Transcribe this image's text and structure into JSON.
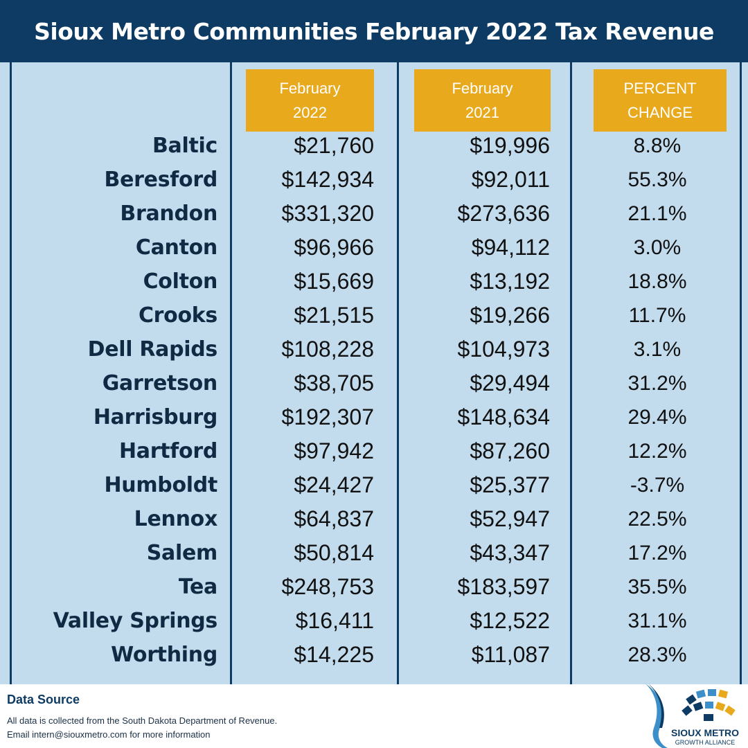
{
  "title": "Sioux Metro Communities February 2022 Tax Revenue",
  "headers": {
    "col1_line1": "February",
    "col1_line2": "2022",
    "col2_line1": "February",
    "col2_line2": "2021",
    "col3_line1": "PERCENT",
    "col3_line2": "CHANGE"
  },
  "chart_data": {
    "type": "table",
    "title": "Sioux Metro Communities February 2022 Tax Revenue",
    "columns": [
      "February 2022",
      "February 2021",
      "PERCENT CHANGE"
    ],
    "rows": [
      {
        "name": "Baltic",
        "feb2022": "$21,760",
        "feb2021": "$19,996",
        "change": "8.8%"
      },
      {
        "name": "Beresford",
        "feb2022": "$142,934",
        "feb2021": "$92,011",
        "change": "55.3%"
      },
      {
        "name": "Brandon",
        "feb2022": "$331,320",
        "feb2021": "$273,636",
        "change": "21.1%"
      },
      {
        "name": "Canton",
        "feb2022": "$96,966",
        "feb2021": "$94,112",
        "change": "3.0%"
      },
      {
        "name": "Colton",
        "feb2022": "$15,669",
        "feb2021": "$13,192",
        "change": "18.8%"
      },
      {
        "name": "Crooks",
        "feb2022": "$21,515",
        "feb2021": "$19,266",
        "change": "11.7%"
      },
      {
        "name": "Dell Rapids",
        "feb2022": "$108,228",
        "feb2021": "$104,973",
        "change": "3.1%"
      },
      {
        "name": "Garretson",
        "feb2022": "$38,705",
        "feb2021": "$29,494",
        "change": "31.2%"
      },
      {
        "name": "Harrisburg",
        "feb2022": "$192,307",
        "feb2021": "$148,634",
        "change": "29.4%"
      },
      {
        "name": "Hartford",
        "feb2022": "$97,942",
        "feb2021": "$87,260",
        "change": "12.2%"
      },
      {
        "name": "Humboldt",
        "feb2022": "$24,427",
        "feb2021": "$25,377",
        "change": "-3.7%"
      },
      {
        "name": "Lennox",
        "feb2022": "$64,837",
        "feb2021": "$52,947",
        "change": "22.5%"
      },
      {
        "name": "Salem",
        "feb2022": "$50,814",
        "feb2021": "$43,347",
        "change": "17.2%"
      },
      {
        "name": "Tea",
        "feb2022": "$248,753",
        "feb2021": "$183,597",
        "change": "35.5%"
      },
      {
        "name": "Valley Springs",
        "feb2022": "$16,411",
        "feb2021": "$12,522",
        "change": "31.1%"
      },
      {
        "name": "Worthing",
        "feb2022": "$14,225",
        "feb2021": "$11,087",
        "change": "28.3%"
      }
    ]
  },
  "footer": {
    "title": "Data Source",
    "line1": "All data is collected from the South Dakota Department of Revenue.",
    "line2": "Email intern@siouxmetro.com for more information"
  },
  "logo": {
    "line1": "SIOUX METRO",
    "line2": "GROWTH ALLIANCE",
    "colors": [
      "#0d3b63",
      "#3c8fc8",
      "#e9a91d"
    ]
  },
  "colors": {
    "navy": "#0d3b63",
    "panel": "#c2dcee",
    "header_gold": "#e9a91d"
  }
}
